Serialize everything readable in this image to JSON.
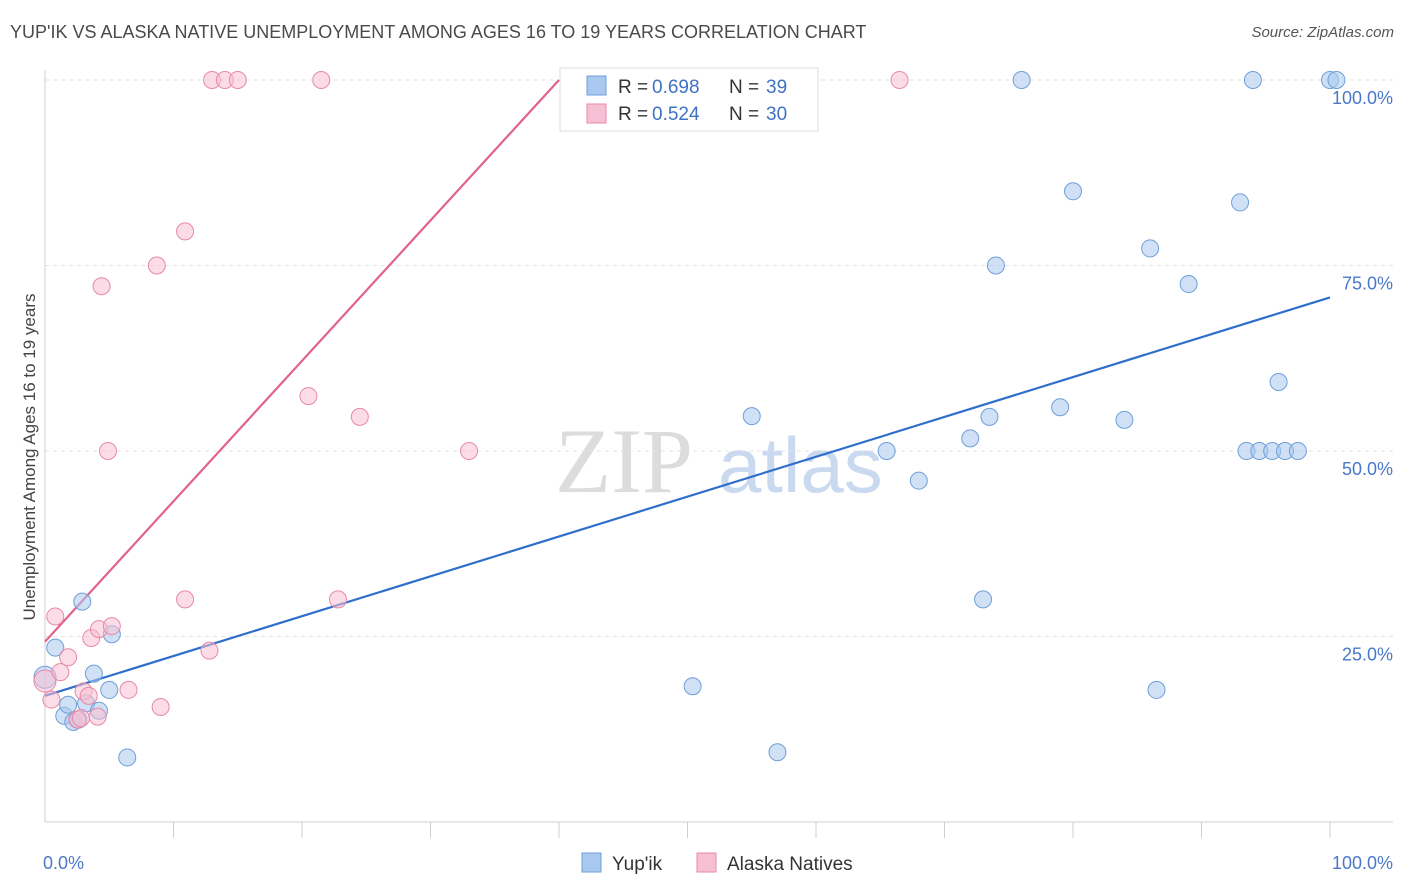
{
  "chart_data": {
    "type": "scatter",
    "title": "YUP'IK VS ALASKA NATIVE UNEMPLOYMENT AMONG AGES 16 TO 19 YEARS CORRELATION CHART",
    "source": "Source: ZipAtlas.com",
    "ylabel": "Unemployment Among Ages 16 to 19 years",
    "xlabel": "",
    "xlim": [
      0,
      100
    ],
    "ylim": [
      0,
      100
    ],
    "x_tick_labels": {
      "min": "0.0%",
      "max": "100.0%"
    },
    "y_ticks": [
      {
        "value": 25,
        "label": "25.0%"
      },
      {
        "value": 50,
        "label": "50.0%"
      },
      {
        "value": 75,
        "label": "75.0%"
      },
      {
        "value": 100,
        "label": "100.0%"
      }
    ],
    "watermark": {
      "part1": "ZIP",
      "part2": "atlas"
    },
    "legend": {
      "r_label": "R =",
      "n_label": "N =",
      "entries": [
        {
          "r": "0.698",
          "n": "39"
        },
        {
          "r": "0.524",
          "n": "30"
        }
      ]
    },
    "series": [
      {
        "name": "Yup'ik",
        "color": "#a9c8ef",
        "stroke": "#6e9fd8",
        "line_color": "#2f6fcc",
        "trend": [
          [
            0,
            17
          ],
          [
            100,
            70.7
          ]
        ],
        "points": [
          [
            0,
            19.5
          ],
          [
            0.8,
            23.5
          ],
          [
            1.5,
            14.3
          ],
          [
            1.8,
            15.8
          ],
          [
            2.2,
            13.5
          ],
          [
            2.6,
            13.8
          ],
          [
            2.9,
            29.7
          ],
          [
            3.2,
            16
          ],
          [
            3.8,
            20
          ],
          [
            4.2,
            15
          ],
          [
            5,
            17.8
          ],
          [
            5.2,
            25.3
          ],
          [
            6.4,
            8.7
          ],
          [
            50.4,
            18.3
          ],
          [
            55,
            54.7
          ],
          [
            57,
            9.4
          ],
          [
            65.5,
            50
          ],
          [
            68,
            46
          ],
          [
            72,
            51.7
          ],
          [
            73,
            30
          ],
          [
            73.5,
            54.6
          ],
          [
            74,
            75
          ],
          [
            76,
            100
          ],
          [
            79,
            55.9
          ],
          [
            80,
            85
          ],
          [
            84,
            54.2
          ],
          [
            86,
            77.3
          ],
          [
            86.5,
            17.8
          ],
          [
            89,
            72.5
          ],
          [
            93,
            83.5
          ],
          [
            93.5,
            50
          ],
          [
            94,
            100
          ],
          [
            94.5,
            50
          ],
          [
            95.5,
            50
          ],
          [
            96,
            59.3
          ],
          [
            96.5,
            50
          ],
          [
            97.5,
            50
          ],
          [
            100,
            100
          ],
          [
            100.5,
            100
          ]
        ]
      },
      {
        "name": "Alaska Natives",
        "color": "#f7bfd3",
        "stroke": "#e889a8",
        "line_color": "#e0628d",
        "trend": [
          [
            0,
            24.3
          ],
          [
            40,
            100
          ]
        ],
        "points": [
          [
            0,
            19
          ],
          [
            0.5,
            16.5
          ],
          [
            0.8,
            27.7
          ],
          [
            1.2,
            20.2
          ],
          [
            1.8,
            22.2
          ],
          [
            2.5,
            13.8
          ],
          [
            2.8,
            14
          ],
          [
            3,
            17.6
          ],
          [
            3.4,
            17
          ],
          [
            3.6,
            24.8
          ],
          [
            4.1,
            14.2
          ],
          [
            4.2,
            26
          ],
          [
            4.4,
            72.2
          ],
          [
            4.9,
            50
          ],
          [
            5.2,
            26.4
          ],
          [
            6.5,
            17.8
          ],
          [
            8.7,
            75
          ],
          [
            9,
            15.5
          ],
          [
            10.9,
            30
          ],
          [
            10.9,
            79.6
          ],
          [
            12.8,
            23.1
          ],
          [
            13,
            100
          ],
          [
            14,
            100
          ],
          [
            15,
            100
          ],
          [
            20.5,
            57.4
          ],
          [
            21.5,
            100
          ],
          [
            22.8,
            30
          ],
          [
            24.5,
            54.6
          ],
          [
            33,
            50
          ],
          [
            66.5,
            100
          ]
        ]
      }
    ]
  }
}
